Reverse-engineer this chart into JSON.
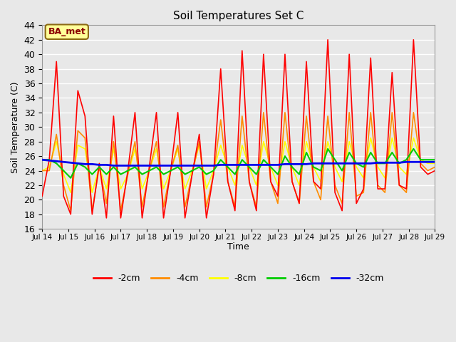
{
  "title": "Soil Temperatures Set C",
  "xlabel": "Time",
  "ylabel": "Soil Temperature (C)",
  "ylim": [
    16,
    44
  ],
  "yticks": [
    16,
    18,
    20,
    22,
    24,
    26,
    28,
    30,
    32,
    34,
    36,
    38,
    40,
    42,
    44
  ],
  "bg_color": "#e8e8e8",
  "plot_bg_color": "#e8e8e8",
  "grid_color": "#ffffff",
  "annotation_text": "BA_met",
  "annotation_color": "#8b0000",
  "annotation_bg": "#ffff99",
  "annotation_border": "#8b6914",
  "series_colors": {
    "-2cm": "#ff0000",
    "-4cm": "#ff8c00",
    "-8cm": "#ffff00",
    "-16cm": "#00cc00",
    "-32cm": "#0000ee"
  },
  "xtick_labels": [
    "Jul 14",
    "Jul 15",
    "Jul 16",
    "Jul 17",
    "Jul 18",
    "Jul 19",
    "Jul 20",
    "Jul 21",
    "Jul 22",
    "Jul 23",
    "Jul 24",
    "Jul 25",
    "Jul 26",
    "Jul 27",
    "Jul 28",
    "Jul 29"
  ],
  "depth_2cm": [
    20.5,
    25.5,
    39.0,
    20.5,
    18.0,
    35.0,
    31.5,
    18.0,
    25.0,
    17.5,
    31.5,
    17.5,
    24.0,
    32.0,
    17.5,
    24.5,
    32.0,
    17.5,
    24.0,
    32.0,
    17.5,
    23.5,
    29.0,
    17.5,
    23.5,
    38.0,
    22.5,
    18.5,
    40.5,
    22.5,
    18.5,
    40.0,
    22.5,
    20.5,
    40.0,
    22.5,
    19.5,
    39.0,
    22.5,
    21.5,
    42.0,
    21.0,
    18.5,
    40.0,
    19.5,
    21.5,
    39.5,
    21.5,
    21.5,
    37.5,
    22.0,
    21.5,
    42.0,
    24.5,
    23.5,
    24.0
  ],
  "depth_4cm": [
    24.0,
    24.0,
    29.0,
    22.0,
    18.5,
    29.5,
    28.5,
    18.5,
    24.5,
    19.5,
    28.0,
    18.5,
    23.5,
    28.0,
    19.0,
    24.0,
    28.0,
    19.0,
    24.0,
    27.5,
    19.0,
    23.5,
    28.0,
    19.0,
    23.5,
    31.0,
    22.5,
    19.0,
    31.5,
    22.5,
    19.0,
    32.0,
    22.5,
    19.5,
    32.0,
    22.5,
    19.5,
    31.5,
    22.5,
    20.0,
    31.5,
    22.0,
    19.5,
    32.0,
    20.5,
    21.0,
    32.0,
    22.0,
    21.0,
    32.0,
    22.0,
    21.0,
    32.0,
    25.0,
    24.0,
    24.5
  ],
  "depth_8cm": [
    24.0,
    24.5,
    28.0,
    23.5,
    21.0,
    27.5,
    27.0,
    21.0,
    24.5,
    21.5,
    27.0,
    21.5,
    23.5,
    27.0,
    21.5,
    24.0,
    27.0,
    21.5,
    24.0,
    27.0,
    21.5,
    24.0,
    27.5,
    21.5,
    24.0,
    27.5,
    24.5,
    22.0,
    27.5,
    24.5,
    22.0,
    28.0,
    24.5,
    22.0,
    28.0,
    24.5,
    22.0,
    28.0,
    24.5,
    22.5,
    28.0,
    24.5,
    22.5,
    28.0,
    24.5,
    23.0,
    28.5,
    24.5,
    23.0,
    28.5,
    24.5,
    23.5,
    28.5,
    25.5,
    25.0,
    25.0
  ],
  "depth_16cm": [
    25.5,
    25.5,
    25.0,
    24.0,
    23.0,
    25.0,
    24.5,
    23.5,
    24.5,
    23.5,
    24.5,
    23.5,
    24.0,
    24.5,
    23.5,
    24.0,
    24.5,
    23.5,
    24.0,
    24.5,
    23.5,
    24.0,
    24.5,
    23.5,
    24.0,
    25.5,
    24.5,
    23.5,
    25.5,
    24.5,
    23.5,
    25.5,
    24.5,
    23.5,
    26.0,
    24.5,
    23.5,
    26.5,
    24.5,
    24.0,
    27.0,
    25.5,
    24.0,
    26.5,
    25.0,
    24.5,
    26.5,
    25.0,
    25.0,
    26.5,
    25.0,
    25.5,
    27.0,
    25.5,
    25.5,
    25.5
  ],
  "depth_32cm": [
    25.5,
    25.4,
    25.3,
    25.2,
    25.1,
    25.0,
    24.9,
    24.9,
    24.8,
    24.8,
    24.7,
    24.7,
    24.7,
    24.7,
    24.7,
    24.7,
    24.7,
    24.7,
    24.7,
    24.7,
    24.7,
    24.7,
    24.7,
    24.7,
    24.7,
    24.8,
    24.8,
    24.8,
    24.8,
    24.8,
    24.8,
    24.8,
    24.8,
    24.8,
    24.9,
    24.9,
    24.9,
    24.9,
    25.0,
    25.0,
    25.0,
    25.0,
    25.0,
    25.0,
    25.0,
    25.0,
    25.0,
    25.1,
    25.1,
    25.1,
    25.1,
    25.2,
    25.2,
    25.2,
    25.2,
    25.2
  ]
}
